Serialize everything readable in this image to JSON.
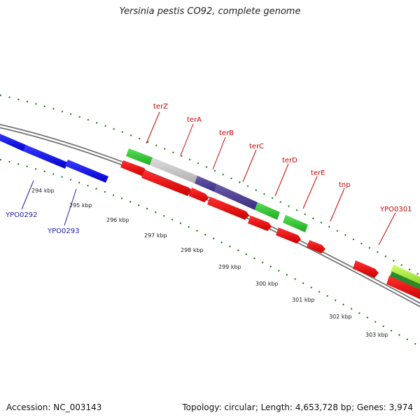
{
  "title": "Yersinia pestis CO92, complete genome",
  "footer": {
    "accession": "Accession: NC_003143",
    "topology": "Topology: circular; Length: 4,653,728 bp; Genes: 3,974"
  },
  "colors": {
    "tick": "#1f7a1f",
    "backbone": "#8a8a8a",
    "label_red": "#cc0000",
    "label_blue": "#1a1aaa",
    "ruler_text": "#222222"
  },
  "scale_labels": [
    "294 kbp",
    "295 kbp",
    "296 kbp",
    "297 kbp",
    "298 kbp",
    "299 kbp",
    "300 kbp",
    "301 kbp",
    "302 kbp",
    "303 kbp"
  ],
  "gene_labels_top": [
    "terZ",
    "terA",
    "terB",
    "terC",
    "terD",
    "terE",
    "tnp",
    "YPO0301"
  ],
  "gene_labels_bottom": [
    "YPO0292",
    "YPO0293"
  ]
}
